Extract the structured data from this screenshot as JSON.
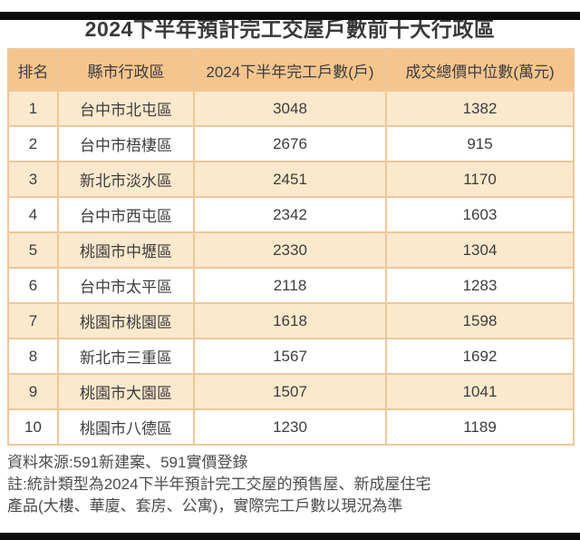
{
  "page": {
    "title": "2024下半年預計完工交屋戶數前十大行政區"
  },
  "chart_data": {
    "type": "table",
    "title": "2024下半年預計完工交屋戶數前十大行政區",
    "columns": [
      "排名",
      "縣市行政區",
      "2024下半年完工戶數(戶)",
      "成交總價中位數(萬元)"
    ],
    "rows": [
      [
        "1",
        "台中市北屯區",
        "3048",
        "1382"
      ],
      [
        "2",
        "台中市梧棲區",
        "2676",
        "915"
      ],
      [
        "3",
        "新北市淡水區",
        "2451",
        "1170"
      ],
      [
        "4",
        "台中市西屯區",
        "2342",
        "1603"
      ],
      [
        "5",
        "桃園市中壢區",
        "2330",
        "1304"
      ],
      [
        "6",
        "台中市太平區",
        "2118",
        "1283"
      ],
      [
        "7",
        "桃園市桃園區",
        "1618",
        "1598"
      ],
      [
        "8",
        "新北市三重區",
        "1567",
        "1692"
      ],
      [
        "9",
        "桃園市大園區",
        "1507",
        "1041"
      ],
      [
        "10",
        "桃園市八德區",
        "1230",
        "1189"
      ]
    ]
  },
  "footer": {
    "source": "資料來源:591新建案、591實價登錄",
    "note_line1": "註:統計類型為2024下半年預計完工交屋的預售屋、新成屋住宅",
    "note_line2": "產品(大樓、華廈、套房、公寓)，實際完工戶數以現況為準"
  },
  "colors": {
    "header_bg": "#f6c58e",
    "row_odd_bg": "#fce9cd",
    "row_even_bg": "#ffffff",
    "border": "#eec79a",
    "title_text": "#3a3a3a",
    "body_text": "#3d3d3d",
    "footer_text": "#4c4c4c",
    "letterbox": "#0b0b0b"
  }
}
